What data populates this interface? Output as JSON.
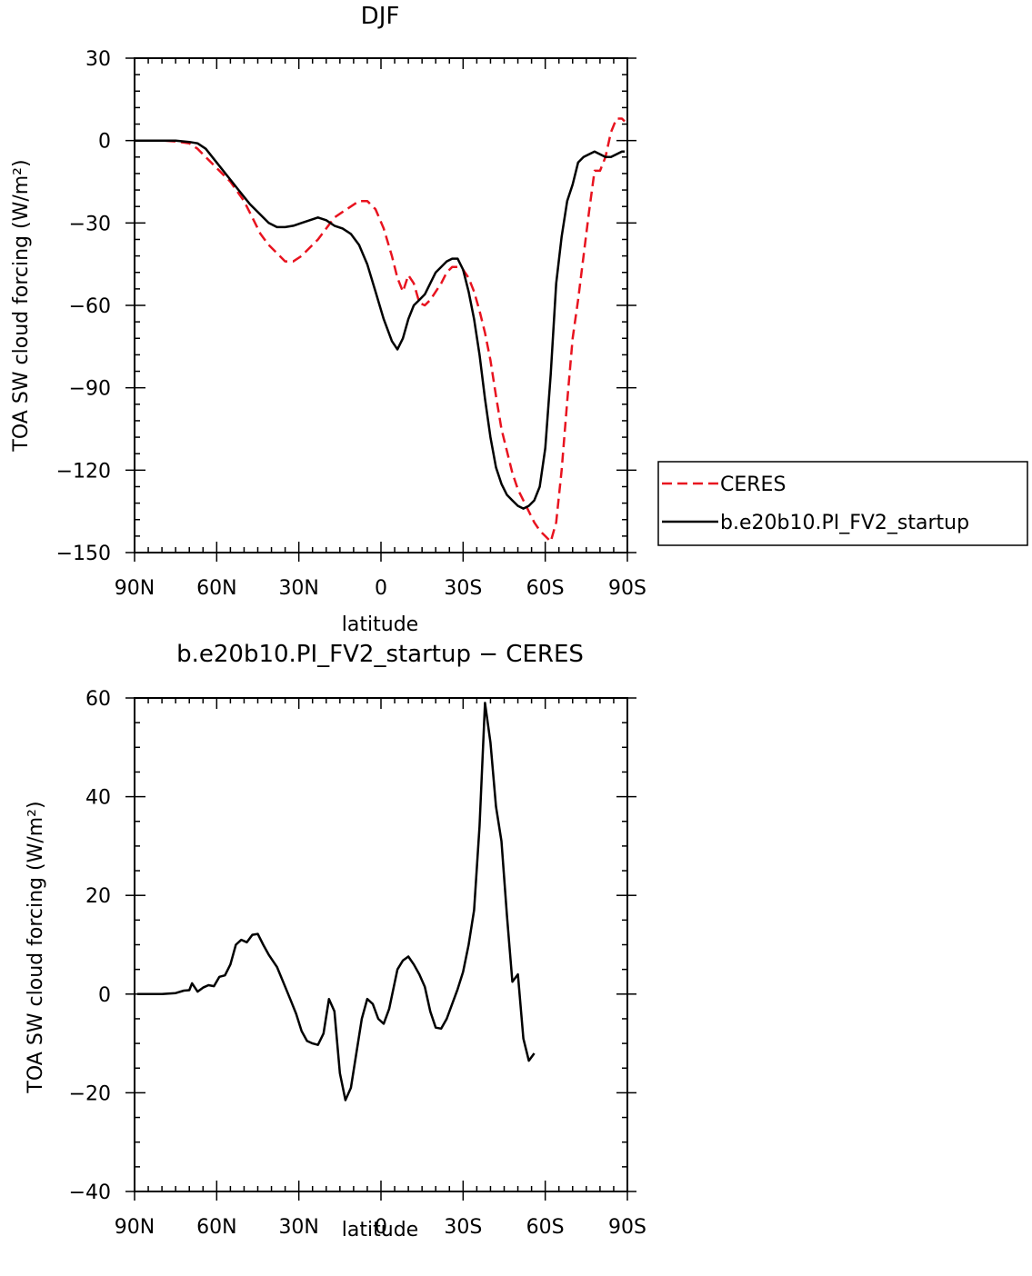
{
  "chart_data": [
    {
      "type": "line",
      "title": "DJF",
      "xlabel": "latitude",
      "ylabel": "TOA SW cloud forcing (W/m²)",
      "xlim": [
        -90,
        90
      ],
      "ylim": [
        -150,
        30
      ],
      "x_ticks": [
        -90,
        -60,
        -30,
        0,
        30,
        60,
        90
      ],
      "x_tick_labels": [
        "90N",
        "60N",
        "30N",
        "0",
        "30S",
        "60S",
        "90S"
      ],
      "y_ticks": [
        30,
        0,
        -30,
        -60,
        -90,
        -120,
        -150
      ],
      "y_tick_labels": [
        "30",
        "0",
        "−30",
        "−60",
        "−90",
        "−120",
        "−150"
      ],
      "legend_position": "right",
      "series": [
        {
          "name": "CERES",
          "color": "#e8131f",
          "dash": "dashed",
          "points": [
            [
              -90,
              0
            ],
            [
              -80,
              0
            ],
            [
              -75,
              -0.3
            ],
            [
              -70,
              -1
            ],
            [
              -67,
              -3
            ],
            [
              -64,
              -6
            ],
            [
              -60,
              -10
            ],
            [
              -55,
              -15
            ],
            [
              -50,
              -22
            ],
            [
              -47,
              -28
            ],
            [
              -44,
              -34
            ],
            [
              -41,
              -38
            ],
            [
              -38,
              -41
            ],
            [
              -35,
              -44
            ],
            [
              -32,
              -44
            ],
            [
              -29,
              -42
            ],
            [
              -26,
              -39
            ],
            [
              -23,
              -36
            ],
            [
              -20,
              -32
            ],
            [
              -17,
              -28
            ],
            [
              -14,
              -26
            ],
            [
              -11,
              -24
            ],
            [
              -8,
              -22
            ],
            [
              -5,
              -22
            ],
            [
              -2,
              -25
            ],
            [
              1,
              -32
            ],
            [
              4,
              -42
            ],
            [
              6,
              -50
            ],
            [
              8,
              -55
            ],
            [
              10,
              -49
            ],
            [
              12,
              -52
            ],
            [
              14,
              -59
            ],
            [
              16,
              -60
            ],
            [
              18,
              -58
            ],
            [
              20,
              -55
            ],
            [
              22,
              -52
            ],
            [
              24,
              -48
            ],
            [
              26,
              -46
            ],
            [
              28,
              -46
            ],
            [
              30,
              -47
            ],
            [
              32,
              -50
            ],
            [
              34,
              -55
            ],
            [
              36,
              -62
            ],
            [
              38,
              -70
            ],
            [
              40,
              -80
            ],
            [
              42,
              -93
            ],
            [
              44,
              -105
            ],
            [
              46,
              -113
            ],
            [
              48,
              -121
            ],
            [
              50,
              -127
            ],
            [
              52,
              -131
            ],
            [
              54,
              -135
            ],
            [
              56,
              -139
            ],
            [
              58,
              -142
            ],
            [
              60,
              -144
            ],
            [
              62,
              -146
            ],
            [
              64,
              -139
            ],
            [
              66,
              -120
            ],
            [
              68,
              -95
            ],
            [
              70,
              -72
            ],
            [
              72,
              -58
            ],
            [
              74,
              -42
            ],
            [
              76,
              -26
            ],
            [
              78,
              -11
            ],
            [
              80,
              -11
            ],
            [
              82,
              -6
            ],
            [
              84,
              3
            ],
            [
              86,
              8
            ],
            [
              88,
              8
            ],
            [
              89,
              7
            ]
          ]
        },
        {
          "name": "b.e20b10.PI_FV2_startup",
          "color": "#000000",
          "dash": "solid",
          "points": [
            [
              -90,
              0
            ],
            [
              -80,
              0
            ],
            [
              -75,
              0
            ],
            [
              -70,
              -0.5
            ],
            [
              -67,
              -1
            ],
            [
              -64,
              -3
            ],
            [
              -60,
              -8
            ],
            [
              -56,
              -13
            ],
            [
              -52,
              -18
            ],
            [
              -48,
              -23
            ],
            [
              -44,
              -27
            ],
            [
              -41,
              -30
            ],
            [
              -38,
              -31.5
            ],
            [
              -35,
              -31.5
            ],
            [
              -32,
              -31
            ],
            [
              -29,
              -30
            ],
            [
              -26,
              -29
            ],
            [
              -23,
              -28
            ],
            [
              -20,
              -29
            ],
            [
              -17,
              -31
            ],
            [
              -14,
              -32
            ],
            [
              -11,
              -34
            ],
            [
              -8,
              -38
            ],
            [
              -5,
              -45
            ],
            [
              -2,
              -55
            ],
            [
              1,
              -65
            ],
            [
              4,
              -73
            ],
            [
              6,
              -76
            ],
            [
              8,
              -72
            ],
            [
              10,
              -65
            ],
            [
              12,
              -60
            ],
            [
              14,
              -58
            ],
            [
              16,
              -56
            ],
            [
              18,
              -52
            ],
            [
              20,
              -48
            ],
            [
              22,
              -46
            ],
            [
              24,
              -44
            ],
            [
              26,
              -43
            ],
            [
              28,
              -43
            ],
            [
              30,
              -47
            ],
            [
              32,
              -55
            ],
            [
              34,
              -65
            ],
            [
              36,
              -78
            ],
            [
              38,
              -94
            ],
            [
              40,
              -108
            ],
            [
              42,
              -119
            ],
            [
              44,
              -125
            ],
            [
              46,
              -129
            ],
            [
              48,
              -131
            ],
            [
              50,
              -133
            ],
            [
              52,
              -134
            ],
            [
              54,
              -133
            ],
            [
              56,
              -131
            ],
            [
              58,
              -126
            ],
            [
              60,
              -112
            ],
            [
              62,
              -85
            ],
            [
              64,
              -52
            ],
            [
              66,
              -35
            ],
            [
              68,
              -22
            ],
            [
              70,
              -16
            ],
            [
              72,
              -8
            ],
            [
              74,
              -6
            ],
            [
              76,
              -5
            ],
            [
              78,
              -4
            ],
            [
              80,
              -5
            ],
            [
              82,
              -6
            ],
            [
              84,
              -6
            ],
            [
              86,
              -5
            ],
            [
              88,
              -4
            ],
            [
              89,
              -4
            ]
          ]
        }
      ]
    },
    {
      "type": "line",
      "title": "b.e20b10.PI_FV2_startup − CERES",
      "xlabel": "latitude",
      "ylabel": "TOA SW cloud forcing (W/m²)",
      "xlim": [
        -90,
        90
      ],
      "ylim": [
        -40,
        60
      ],
      "x_ticks": [
        -90,
        -60,
        -30,
        0,
        30,
        60,
        90
      ],
      "x_tick_labels": [
        "90N",
        "60N",
        "30N",
        "0",
        "30S",
        "60S",
        "90S"
      ],
      "y_ticks": [
        60,
        40,
        20,
        0,
        -20,
        -40
      ],
      "y_tick_labels": [
        "60",
        "40",
        "20",
        "0",
        "−20",
        "−40"
      ],
      "series": [
        {
          "color": "#000000",
          "dash": "solid",
          "points": [
            [
              -89,
              0
            ],
            [
              -80,
              0
            ],
            [
              -75,
              0.2
            ],
            [
              -72,
              0.7
            ],
            [
              -70,
              0.8
            ],
            [
              -69,
              2.2
            ],
            [
              -67,
              0.5
            ],
            [
              -65,
              1.3
            ],
            [
              -63,
              1.8
            ],
            [
              -61,
              1.6
            ],
            [
              -59,
              3.5
            ],
            [
              -57,
              3.8
            ],
            [
              -55,
              6.0
            ],
            [
              -53,
              10.0
            ],
            [
              -51,
              11.0
            ],
            [
              -49,
              10.5
            ],
            [
              -47,
              12.0
            ],
            [
              -45,
              12.2
            ],
            [
              -43,
              10.0
            ],
            [
              -41,
              8.0
            ],
            [
              -38,
              5.5
            ],
            [
              -35,
              1.5
            ],
            [
              -33,
              -1.2
            ],
            [
              -31,
              -4.0
            ],
            [
              -29,
              -7.5
            ],
            [
              -27,
              -9.5
            ],
            [
              -25,
              -10.0
            ],
            [
              -23,
              -10.3
            ],
            [
              -21,
              -8.0
            ],
            [
              -19,
              -1.0
            ],
            [
              -17,
              -3.5
            ],
            [
              -15,
              -16.0
            ],
            [
              -13,
              -21.5
            ],
            [
              -11,
              -19.0
            ],
            [
              -9,
              -12.0
            ],
            [
              -7,
              -5.0
            ],
            [
              -5,
              -1.0
            ],
            [
              -3,
              -2.0
            ],
            [
              -1,
              -5.0
            ],
            [
              1,
              -6.0
            ],
            [
              3,
              -3.0
            ],
            [
              6,
              5.0
            ],
            [
              8,
              6.8
            ],
            [
              10,
              7.6
            ],
            [
              12,
              6.0
            ],
            [
              14,
              4.0
            ],
            [
              16,
              1.5
            ],
            [
              18,
              -3.5
            ],
            [
              20,
              -6.8
            ],
            [
              22,
              -7.0
            ],
            [
              24,
              -5.0
            ],
            [
              26,
              -2.0
            ],
            [
              28,
              1.0
            ],
            [
              30,
              4.5
            ],
            [
              32,
              10.0
            ],
            [
              34,
              17.0
            ],
            [
              36,
              34.0
            ],
            [
              38,
              59.0
            ],
            [
              40,
              51.0
            ],
            [
              42,
              38.0
            ],
            [
              44,
              31.0
            ],
            [
              46,
              16.0
            ],
            [
              48,
              2.5
            ],
            [
              50,
              4.0
            ],
            [
              52,
              -9.0
            ],
            [
              54,
              -13.5
            ],
            [
              56,
              -12.0
            ]
          ]
        }
      ]
    }
  ],
  "legend": {
    "entries": [
      "CERES",
      "b.e20b10.PI_FV2_startup"
    ]
  }
}
